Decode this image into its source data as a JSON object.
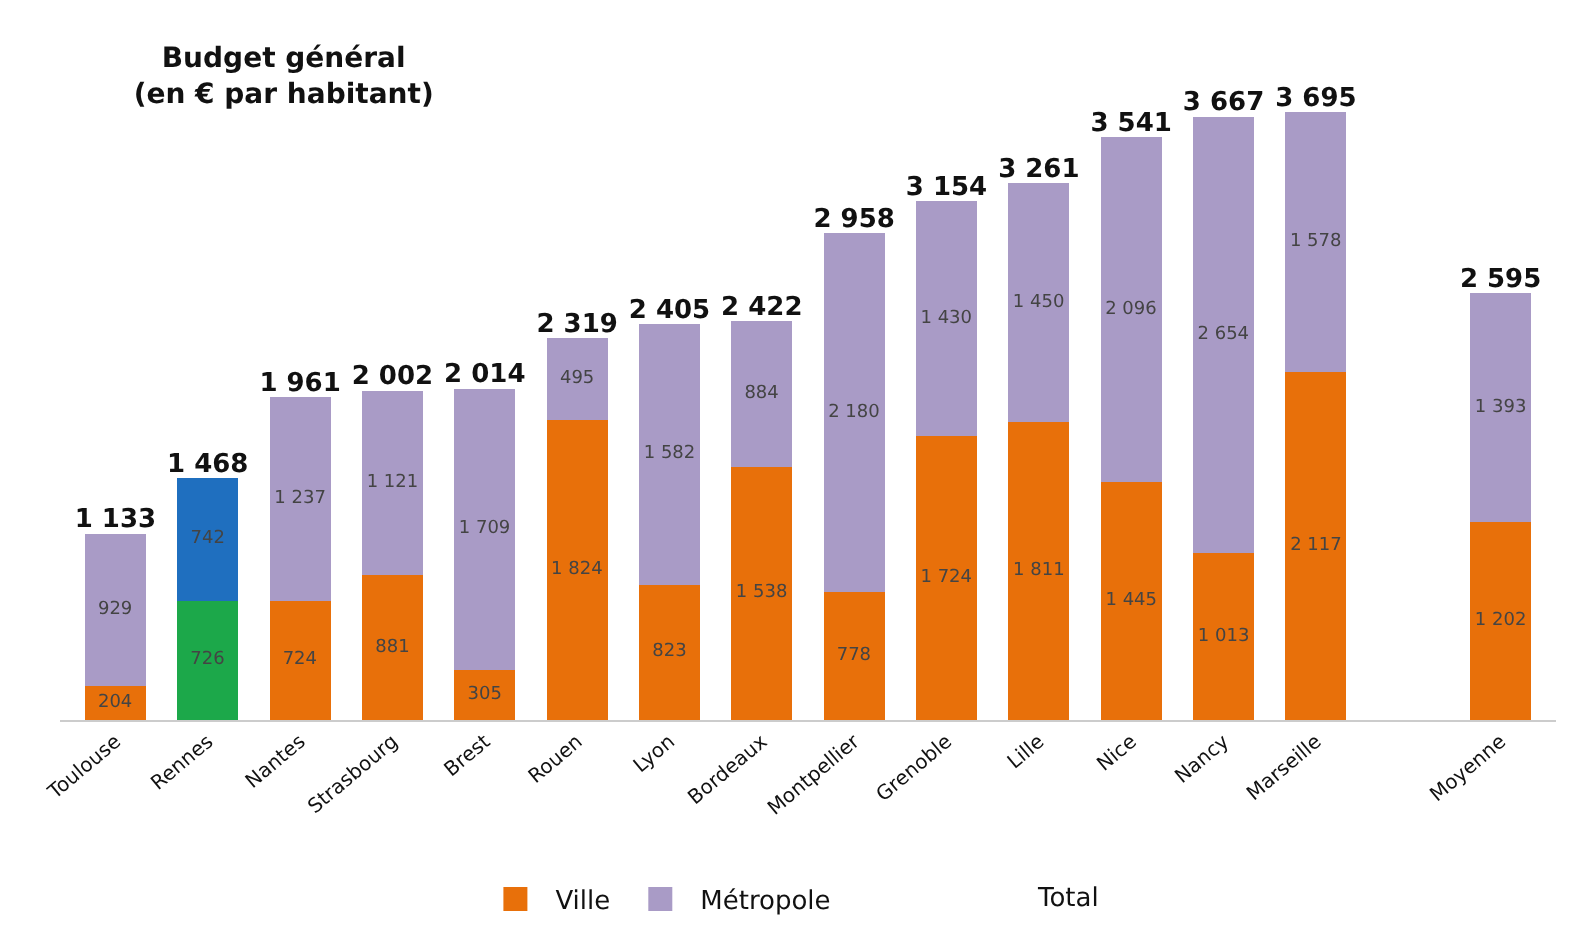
{
  "chart_data": {
    "type": "bar",
    "stacked": true,
    "title": "Budget général\n(en € par habitant)",
    "categories": [
      "Toulouse",
      "Rennes",
      "Nantes",
      "Strasbourg",
      "Brest",
      "Rouen",
      "Lyon",
      "Bordeaux",
      "Montpellier",
      "Grenoble",
      "Lille",
      "Nice",
      "Nancy",
      "Marseille",
      null,
      "Moyenne"
    ],
    "series": [
      {
        "name": "Ville",
        "colors": [
          "#e8700a",
          "#1ca84a",
          "#e8700a",
          "#e8700a",
          "#e8700a",
          "#e8700a",
          "#e8700a",
          "#e8700a",
          "#e8700a",
          "#e8700a",
          "#e8700a",
          "#e8700a",
          "#e8700a",
          "#e8700a",
          "#e8700a",
          "#e8700a"
        ],
        "values": [
          204,
          726,
          724,
          881,
          305,
          1824,
          823,
          1538,
          778,
          1724,
          1811,
          1445,
          1013,
          2117,
          null,
          1202
        ],
        "value_labels": [
          "204",
          "726",
          "724",
          "881",
          "305",
          "1 824",
          "823",
          "1 538",
          "778",
          "1 724",
          "1 811",
          "1 445",
          "1 013",
          "2 117",
          null,
          "1 202"
        ]
      },
      {
        "name": "Métropole",
        "colors": [
          "#a99bc6",
          "#1f6fbf",
          "#a99bc6",
          "#a99bc6",
          "#a99bc6",
          "#a99bc6",
          "#a99bc6",
          "#a99bc6",
          "#a99bc6",
          "#a99bc6",
          "#a99bc6",
          "#a99bc6",
          "#a99bc6",
          "#a99bc6",
          "#a99bc6",
          "#a99bc6"
        ],
        "values": [
          929,
          742,
          1237,
          1121,
          1709,
          495,
          1582,
          884,
          2180,
          1430,
          1450,
          2096,
          2654,
          1578,
          null,
          1393
        ],
        "value_labels": [
          "929",
          "742",
          "1 237",
          "1 121",
          "1 709",
          "495",
          "1 582",
          "884",
          "2 180",
          "1 430",
          "1 450",
          "2 096",
          "2 654",
          "1 578",
          null,
          "1 393"
        ]
      }
    ],
    "totals": [
      "1 133",
      "1 468",
      "1 961",
      "2 002",
      "2 014",
      "2 319",
      "2 405",
      "2 422",
      "2 958",
      "3 154",
      "3 261",
      "3 541",
      "3 667",
      "3 695",
      null,
      "2 595"
    ],
    "annotations": [
      "Total"
    ],
    "legend": "bottom",
    "tick_labels": "x",
    "grid": false
  }
}
